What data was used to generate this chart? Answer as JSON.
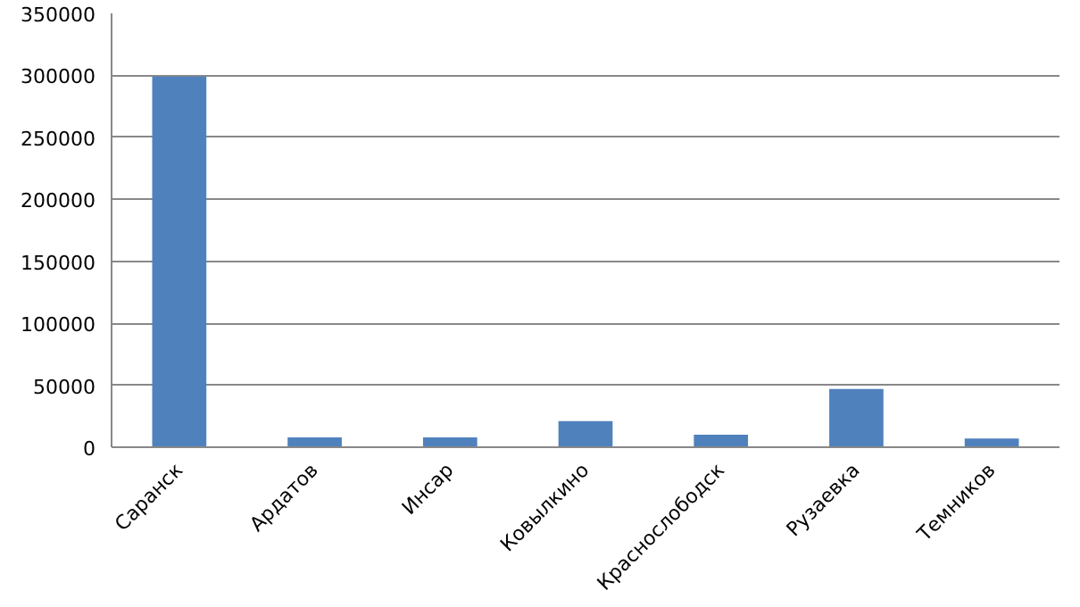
{
  "chart_data": {
    "type": "bar",
    "categories": [
      "Саранск",
      "Ардатов",
      "Инсар",
      "Ковылкино",
      "Краснослободск",
      "Рузаевка",
      "Темников"
    ],
    "values": [
      299000,
      8000,
      8000,
      21000,
      10000,
      47000,
      7000
    ],
    "color": "#4f81bd",
    "ylim": [
      0,
      350000
    ],
    "yticks": [
      0,
      50000,
      100000,
      150000,
      200000,
      250000,
      300000,
      350000
    ],
    "grid": "y"
  }
}
